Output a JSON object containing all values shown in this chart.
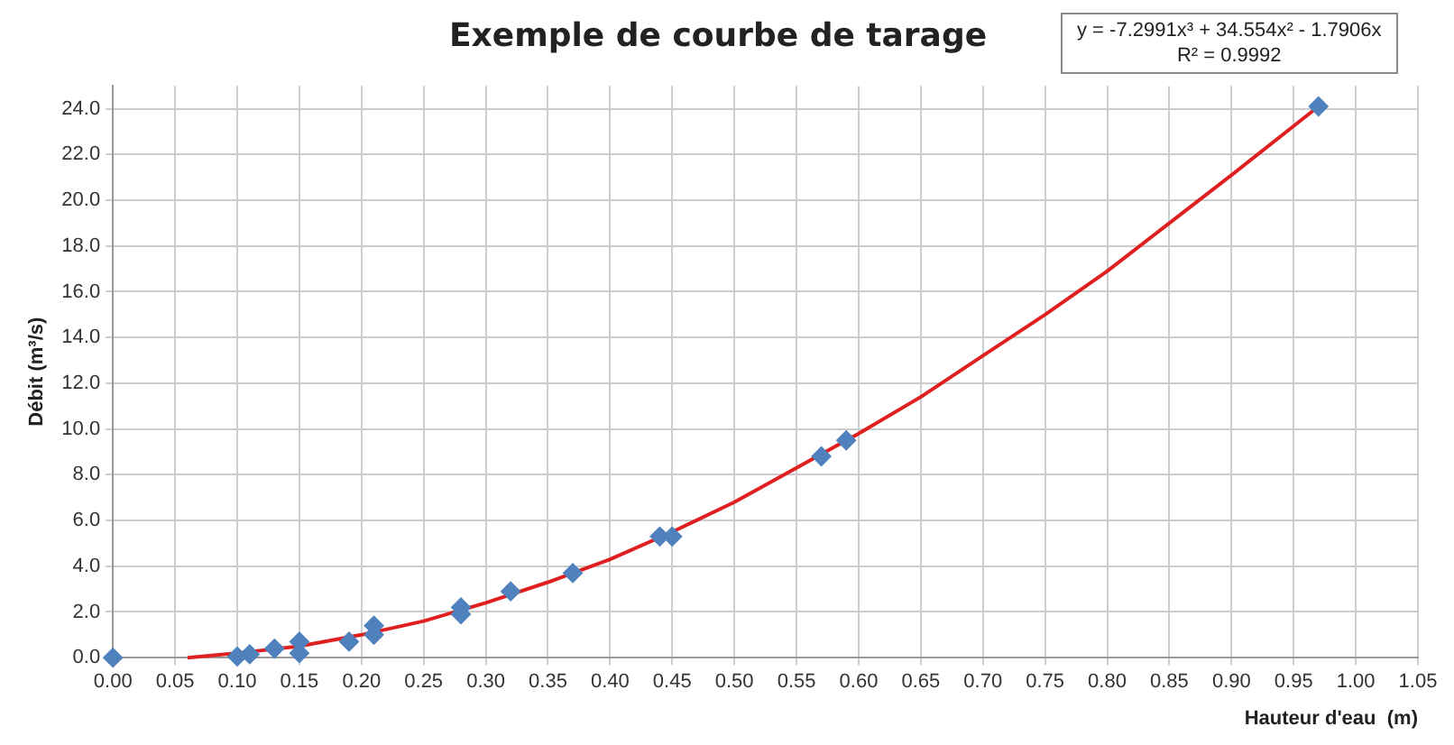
{
  "chart_data": {
    "type": "scatter",
    "title": "Exemple de courbe de tarage",
    "xlabel": "Hauteur d'eau  (m)",
    "ylabel": "Débit (m³/s)",
    "annotations": [
      "y = -7.2991x³ + 34.554x² - 1.7906x",
      "R² = 0.9992"
    ],
    "xlim": [
      0,
      1.05
    ],
    "ylim": [
      0,
      25
    ],
    "xticks": [
      {
        "value": 0,
        "label": "0.00"
      },
      {
        "value": 0.05,
        "label": "0.05"
      },
      {
        "value": 0.1,
        "label": "0.10"
      },
      {
        "value": 0.15,
        "label": "0.15"
      },
      {
        "value": 0.2,
        "label": "0.20"
      },
      {
        "value": 0.25,
        "label": "0.25"
      },
      {
        "value": 0.3,
        "label": "0.30"
      },
      {
        "value": 0.35,
        "label": "0.35"
      },
      {
        "value": 0.4,
        "label": "0.40"
      },
      {
        "value": 0.45,
        "label": "0.45"
      },
      {
        "value": 0.5,
        "label": "0.50"
      },
      {
        "value": 0.55,
        "label": "0.55"
      },
      {
        "value": 0.6,
        "label": "0.60"
      },
      {
        "value": 0.65,
        "label": "0.65"
      },
      {
        "value": 0.7,
        "label": "0.70"
      },
      {
        "value": 0.75,
        "label": "0.75"
      },
      {
        "value": 0.8,
        "label": "0.80"
      },
      {
        "value": 0.85,
        "label": "0.85"
      },
      {
        "value": 0.9,
        "label": "0.90"
      },
      {
        "value": 0.95,
        "label": "0.95"
      },
      {
        "value": 1,
        "label": "1.00"
      },
      {
        "value": 1.05,
        "label": "1.05"
      }
    ],
    "yticks": [
      {
        "value": 0,
        "label": "0.0"
      },
      {
        "value": 2,
        "label": "2.0"
      },
      {
        "value": 4,
        "label": "4.0"
      },
      {
        "value": 6,
        "label": "6.0"
      },
      {
        "value": 8,
        "label": "8.0"
      },
      {
        "value": 10,
        "label": "10.0"
      },
      {
        "value": 12,
        "label": "12.0"
      },
      {
        "value": 14,
        "label": "14.0"
      },
      {
        "value": 16,
        "label": "16.0"
      },
      {
        "value": 18,
        "label": "18.0"
      },
      {
        "value": 20,
        "label": "20.0"
      },
      {
        "value": 22,
        "label": "22.0"
      },
      {
        "value": 24,
        "label": "24.0"
      }
    ],
    "grid": true,
    "legend": false,
    "marker": "diamond",
    "series": [
      {
        "color": "#4f81bd",
        "x": [
          0,
          0.1,
          0.11,
          0.13,
          0.15,
          0.15,
          0.19,
          0.21,
          0.21,
          0.28,
          0.28,
          0.32,
          0.37,
          0.44,
          0.45,
          0.57,
          0.59,
          0.97
        ],
        "values": [
          0,
          0.05,
          0.15,
          0.4,
          0.7,
          0.2,
          0.7,
          1.0,
          1.4,
          2.2,
          1.9,
          2.9,
          3.7,
          5.3,
          5.3,
          8.8,
          9.5,
          24.1
        ]
      },
      {
        "type": "line",
        "color": "#e02020",
        "marker": "none",
        "x": [
          0.06,
          0.1,
          0.15,
          0.2,
          0.25,
          0.3,
          0.35,
          0.4,
          0.45,
          0.5,
          0.55,
          0.6,
          0.65,
          0.7,
          0.75,
          0.8,
          0.85,
          0.9,
          0.97
        ],
        "values": [
          0.0,
          0.2,
          0.5,
          1.0,
          1.6,
          2.4,
          3.3,
          4.3,
          5.5,
          6.8,
          8.3,
          9.8,
          11.4,
          13.2,
          15.0,
          16.9,
          19.0,
          21.1,
          24.1
        ]
      }
    ]
  }
}
